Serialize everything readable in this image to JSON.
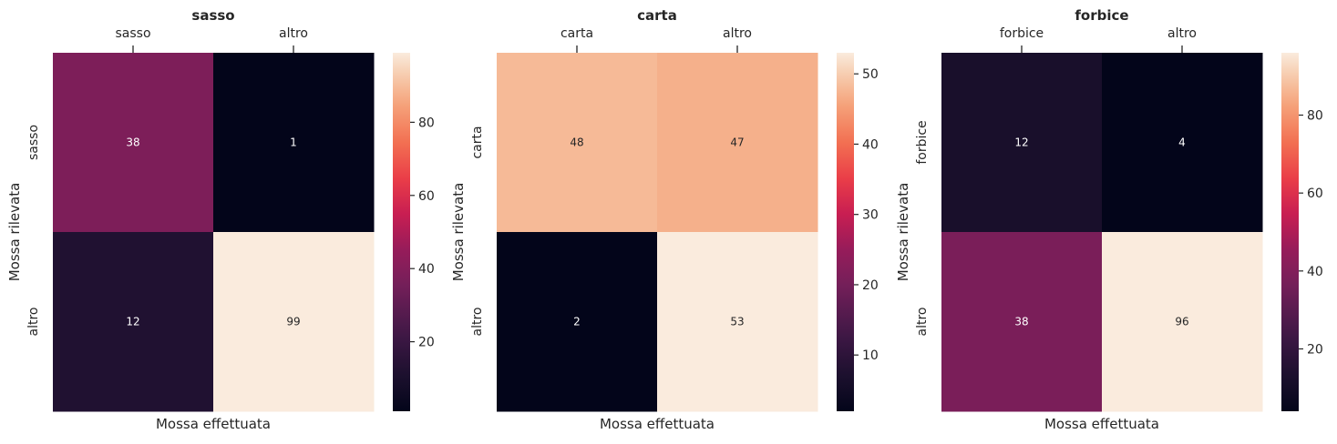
{
  "chart_data": [
    {
      "type": "heatmap",
      "title": "sasso",
      "xlabel": "Mossa effettuata",
      "ylabel": "Mossa rilevata",
      "x_categories": [
        "sasso",
        "altro"
      ],
      "y_categories": [
        "sasso",
        "altro"
      ],
      "values": [
        [
          38,
          1
        ],
        [
          12,
          99
        ]
      ],
      "color_range": [
        1,
        99
      ],
      "colorbar_ticks": [
        20,
        40,
        60,
        80
      ],
      "colormap": "rocket",
      "x_ticks_position": "top",
      "legend": "colorbar-right"
    },
    {
      "type": "heatmap",
      "title": "carta",
      "xlabel": "Mossa effettuata",
      "ylabel": "Mossa rilevata",
      "x_categories": [
        "carta",
        "altro"
      ],
      "y_categories": [
        "carta",
        "altro"
      ],
      "values": [
        [
          48,
          47
        ],
        [
          2,
          53
        ]
      ],
      "color_range": [
        2,
        53
      ],
      "colorbar_ticks": [
        10,
        20,
        30,
        40,
        50
      ],
      "colormap": "rocket",
      "x_ticks_position": "top",
      "legend": "colorbar-right"
    },
    {
      "type": "heatmap",
      "title": "forbice",
      "xlabel": "Mossa effettuata",
      "ylabel": "Mossa rilevata",
      "x_categories": [
        "forbice",
        "altro"
      ],
      "y_categories": [
        "forbice",
        "altro"
      ],
      "values": [
        [
          12,
          4
        ],
        [
          38,
          96
        ]
      ],
      "color_range": [
        4,
        96
      ],
      "colorbar_ticks": [
        20,
        40,
        60,
        80
      ],
      "colormap": "rocket",
      "x_ticks_position": "top",
      "legend": "colorbar-right"
    }
  ]
}
